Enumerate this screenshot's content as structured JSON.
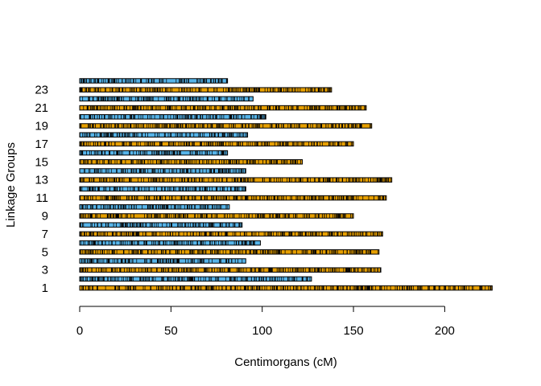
{
  "chart_data": {
    "type": "bar",
    "orientation": "horizontal",
    "title": "",
    "xlabel": "Centimorgans (cM)",
    "ylabel": "Linkage Groups",
    "xlim": [
      0,
      226
    ],
    "x_ticks": [
      0,
      50,
      100,
      150,
      200
    ],
    "y_tick_labels": [
      1,
      3,
      5,
      7,
      9,
      11,
      13,
      15,
      17,
      19,
      21,
      23
    ],
    "grid": false,
    "legend": "none",
    "colors": {
      "odd_group": "#E69F00",
      "even_group": "#56B4E9",
      "marker": "#000000",
      "border": "#000000"
    },
    "categories": [
      "1",
      "2",
      "3",
      "4",
      "5",
      "6",
      "7",
      "8",
      "9",
      "10",
      "11",
      "12",
      "13",
      "14",
      "15",
      "16",
      "17",
      "18",
      "19",
      "20",
      "21",
      "22",
      "23",
      "24"
    ],
    "values": [
      226,
      127,
      165,
      91,
      164,
      99,
      166,
      89,
      150,
      82,
      168,
      91,
      171,
      91,
      122,
      81,
      150,
      92,
      160,
      102,
      157,
      95,
      138,
      81
    ]
  }
}
